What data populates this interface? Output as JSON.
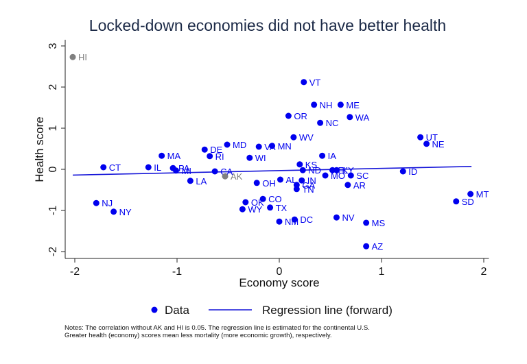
{
  "chart_data": {
    "type": "scatter",
    "title": "Locked-down economies did not have better health",
    "xlabel": "Economy score",
    "ylabel": "Health score",
    "xlim": [
      -2.1,
      2.05
    ],
    "ylim": [
      -2.15,
      3.15
    ],
    "xticks": [
      -2,
      -1,
      0,
      1,
      2
    ],
    "yticks": [
      -2,
      -1,
      0,
      1,
      2,
      3
    ],
    "grid": false,
    "colors": {
      "data": "#0000ee",
      "excluded": "#808080",
      "regression": "#1515d8",
      "title": "#1c2a47"
    },
    "points": [
      {
        "label": "HI",
        "x": -2.02,
        "y": 2.73,
        "excluded": true
      },
      {
        "label": "VT",
        "x": 0.24,
        "y": 2.12
      },
      {
        "label": "NH",
        "x": 0.34,
        "y": 1.57
      },
      {
        "label": "ME",
        "x": 0.6,
        "y": 1.57
      },
      {
        "label": "OR",
        "x": 0.09,
        "y": 1.3
      },
      {
        "label": "WA",
        "x": 0.69,
        "y": 1.27
      },
      {
        "label": "NC",
        "x": 0.4,
        "y": 1.13
      },
      {
        "label": "WV",
        "x": 0.14,
        "y": 0.78
      },
      {
        "label": "UT",
        "x": 1.38,
        "y": 0.78
      },
      {
        "label": "NE",
        "x": 1.44,
        "y": 0.62
      },
      {
        "label": "MD",
        "x": -0.51,
        "y": 0.6
      },
      {
        "label": "MN",
        "x": -0.07,
        "y": 0.57
      },
      {
        "label": "VA",
        "x": -0.2,
        "y": 0.55
      },
      {
        "label": "DE",
        "x": -0.73,
        "y": 0.48
      },
      {
        "label": "MA",
        "x": -1.15,
        "y": 0.33
      },
      {
        "label": "IA",
        "x": 0.42,
        "y": 0.33
      },
      {
        "label": "RI",
        "x": -0.68,
        "y": 0.32
      },
      {
        "label": "WI",
        "x": -0.29,
        "y": 0.28
      },
      {
        "label": "KS",
        "x": 0.2,
        "y": 0.12
      },
      {
        "label": "CT",
        "x": -1.72,
        "y": 0.05
      },
      {
        "label": "IL",
        "x": -1.28,
        "y": 0.05
      },
      {
        "label": "PA",
        "x": -1.04,
        "y": 0.03
      },
      {
        "label": "MI",
        "x": -1.01,
        "y": -0.03
      },
      {
        "label": "ND",
        "x": 0.23,
        "y": -0.02
      },
      {
        "label": "FL",
        "x": 0.52,
        "y": -0.02
      },
      {
        "label": "KY",
        "x": 0.56,
        "y": -0.02
      },
      {
        "label": "ID",
        "x": 1.21,
        "y": -0.05
      },
      {
        "label": "CA",
        "x": -0.63,
        "y": -0.05
      },
      {
        "label": "AK",
        "x": -0.53,
        "y": -0.17,
        "excluded": true
      },
      {
        "label": "MO",
        "x": 0.45,
        "y": -0.15
      },
      {
        "label": "SC",
        "x": 0.7,
        "y": -0.15
      },
      {
        "label": "AL",
        "x": 0.01,
        "y": -0.25
      },
      {
        "label": "IN",
        "x": 0.22,
        "y": -0.27
      },
      {
        "label": "LA",
        "x": -0.87,
        "y": -0.28
      },
      {
        "label": "OH",
        "x": -0.22,
        "y": -0.33
      },
      {
        "label": "GA",
        "x": 0.17,
        "y": -0.38
      },
      {
        "label": "AR",
        "x": 0.67,
        "y": -0.38
      },
      {
        "label": "TN",
        "x": 0.17,
        "y": -0.48
      },
      {
        "label": "MT",
        "x": 1.87,
        "y": -0.6
      },
      {
        "label": "CO",
        "x": -0.16,
        "y": -0.72
      },
      {
        "label": "SD",
        "x": 1.73,
        "y": -0.78
      },
      {
        "label": "OK",
        "x": -0.33,
        "y": -0.8
      },
      {
        "label": "NJ",
        "x": -1.79,
        "y": -0.82
      },
      {
        "label": "TX",
        "x": -0.09,
        "y": -0.93
      },
      {
        "label": "WY",
        "x": -0.36,
        "y": -0.97
      },
      {
        "label": "NY",
        "x": -1.62,
        "y": -1.03
      },
      {
        "label": "NV",
        "x": 0.56,
        "y": -1.17
      },
      {
        "label": "DC",
        "x": 0.15,
        "y": -1.22
      },
      {
        "label": "NM",
        "x": 0.0,
        "y": -1.27
      },
      {
        "label": "MS",
        "x": 0.85,
        "y": -1.3
      },
      {
        "label": "AZ",
        "x": 0.85,
        "y": -1.87
      }
    ],
    "regression_line": {
      "name": "Regression line (forward)",
      "x": [
        -2.02,
        1.88
      ],
      "y": [
        -0.14,
        0.07
      ]
    },
    "legend": {
      "placement": "bottom",
      "entries": [
        {
          "name": "Data",
          "marker": "dot"
        },
        {
          "name": "Regression line (forward)",
          "marker": "line"
        }
      ]
    },
    "notes": [
      "Notes: The correlation without AK and HI is 0.05.  The regression line is estimated for the continental U.S.",
      "Greater health (economy) scores mean less mortality (more economic growth), respectively."
    ]
  }
}
